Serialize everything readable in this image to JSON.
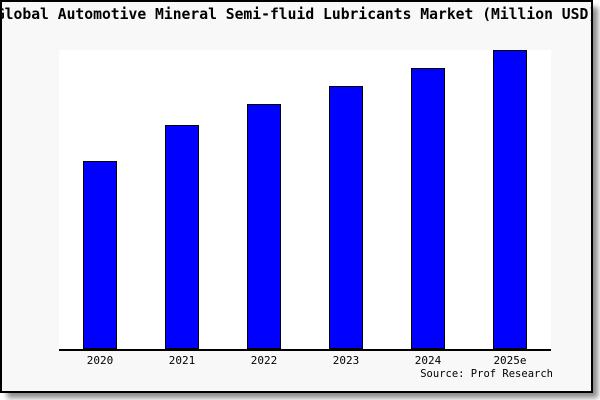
{
  "window": {
    "background_color": "#f8f8f8",
    "border_color": "#000000",
    "plot_background_color": "#ffffff"
  },
  "chart": {
    "title": "Global Automotive Mineral Semi-fluid Lubricants Market (Million USD)",
    "source": "Source: Prof Research",
    "bar_color": "#0000ff",
    "bar_edge_color": "#000000",
    "axis_color": "#000000"
  },
  "chart_data": {
    "type": "bar",
    "title": "Global Automotive Mineral Semi-fluid Lubricants Market (Million USD)",
    "categories": [
      "2020",
      "2021",
      "2022",
      "2023",
      "2024",
      "2025e"
    ],
    "values": [
      63,
      75,
      82,
      88,
      94,
      100
    ],
    "value_note": "no y-axis ticks or gridlines shown; values estimated from bar heights relative to 2025e = 100",
    "xlabel": "",
    "ylabel": "",
    "ylim": [
      0,
      100
    ],
    "grid": false,
    "legend": false,
    "bar_color": "#0000ff",
    "source": "Source: Prof Research"
  }
}
